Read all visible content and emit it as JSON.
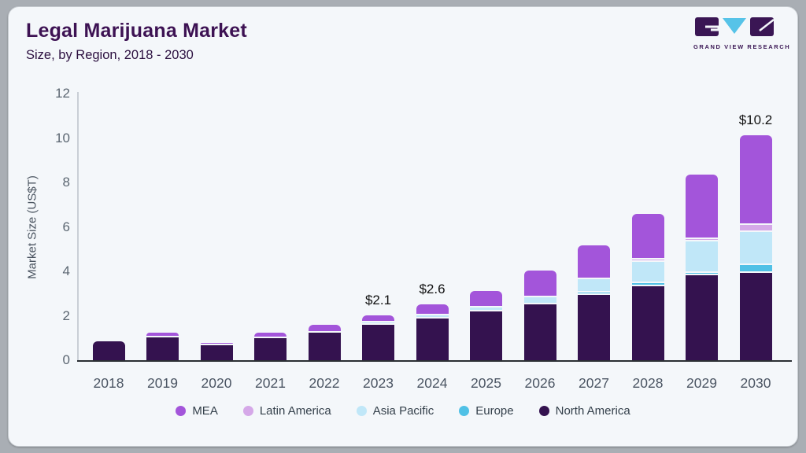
{
  "header": {
    "title": "Legal Marijuana Market",
    "subtitle": "Size, by Region, 2018 - 2030"
  },
  "logo": {
    "text": "GRAND VIEW RESEARCH",
    "mark_dark_color": "#3a1654",
    "mark_blue_color": "#56c3e8"
  },
  "chart_data": {
    "type": "bar",
    "stacked": true,
    "title": "Legal Marijuana Market Size, by Region, 2018 - 2030",
    "xlabel": "",
    "ylabel": "Market Size (US$T)",
    "ylim": [
      0,
      12
    ],
    "ytick_step": 2,
    "grid": false,
    "legend_position": "bottom",
    "stack_order": "bottom-to-top",
    "categories": [
      "2018",
      "2019",
      "2020",
      "2021",
      "2022",
      "2023",
      "2024",
      "2025",
      "2026",
      "2027",
      "2028",
      "2029",
      "2030"
    ],
    "series": [
      {
        "name": "North America",
        "color": "#34124f",
        "values": [
          0.92,
          1.1,
          0.75,
          1.05,
          1.32,
          1.65,
          1.95,
          2.25,
          2.6,
          3.0,
          3.4,
          3.9,
          4.0
        ]
      },
      {
        "name": "Europe",
        "color": "#50c1e6",
        "values": [
          0,
          0,
          0,
          0,
          0,
          0,
          0,
          0,
          0,
          0.08,
          0.15,
          0.1,
          0.35
        ]
      },
      {
        "name": "Asia Pacific",
        "color": "#c0e7f8",
        "values": [
          0,
          0,
          0,
          0,
          0,
          0.1,
          0.13,
          0.2,
          0.3,
          0.62,
          0.95,
          1.4,
          1.5
        ]
      },
      {
        "name": "Latin America",
        "color": "#d5a8e8",
        "values": [
          0,
          0,
          0,
          0,
          0,
          0,
          0,
          0,
          0,
          0,
          0.05,
          0.1,
          0.3
        ]
      },
      {
        "name": "MEA",
        "color": "#a355da",
        "values": [
          0,
          0.2,
          0.1,
          0.25,
          0.36,
          0.35,
          0.52,
          0.75,
          1.2,
          1.5,
          2.05,
          2.9,
          4.05
        ]
      }
    ],
    "totals": [
      0.9,
      1.3,
      0.85,
      1.3,
      1.7,
      2.1,
      2.6,
      3.2,
      4.1,
      5.2,
      6.6,
      8.4,
      10.2
    ],
    "value_labels": {
      "2023": "$2.1",
      "2024": "$2.6",
      "2030": "$10.2"
    }
  }
}
